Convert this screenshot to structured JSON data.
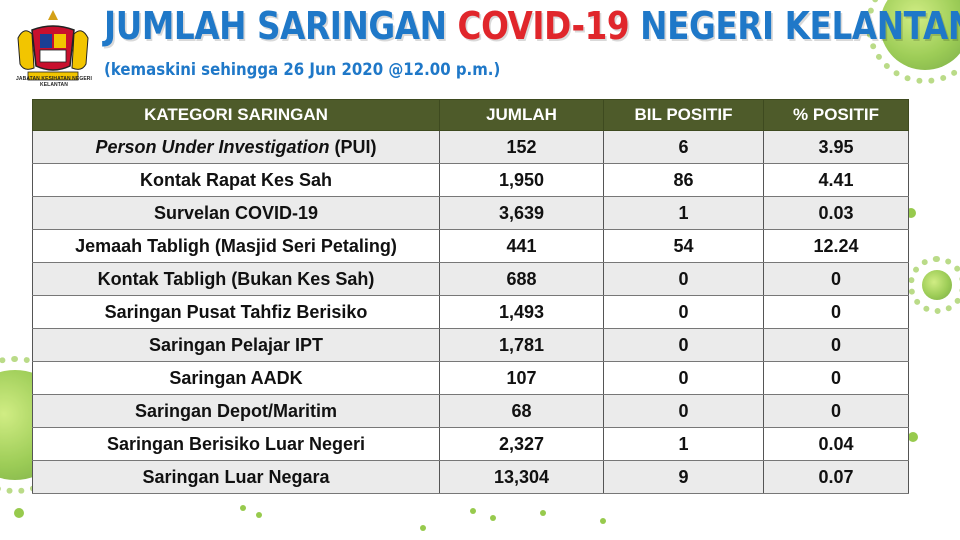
{
  "header": {
    "logo_caption": "JABATAN KESIHATAN NEGERI KELANTAN",
    "title_part1": "JUMLAH SARINGAN ",
    "title_part2": "COVID-19",
    "title_part3": " NEGERI KELANTAN",
    "subtitle": "(kemaskini sehingga 26 Jun 2020 @12.00 p.m.)"
  },
  "colors": {
    "title_blue": "#1f78c8",
    "title_red": "#e0262b",
    "header_bg": "#4e5b2a",
    "virus_green": "#8cc43a"
  },
  "table": {
    "headers": [
      "KATEGORI SARINGAN",
      "JUMLAH",
      "BIL POSITIF",
      "% POSITIF"
    ],
    "rows": [
      {
        "kategori_italic": "Person Under Investigation",
        "kategori": " (PUI)",
        "jumlah": "152",
        "positif": "6",
        "peratus": "3.95"
      },
      {
        "kategori_italic": "",
        "kategori": "Kontak Rapat Kes Sah",
        "jumlah": "1,950",
        "positif": "86",
        "peratus": "4.41"
      },
      {
        "kategori_italic": "",
        "kategori": "Survelan COVID-19",
        "jumlah": "3,639",
        "positif": "1",
        "peratus": "0.03"
      },
      {
        "kategori_italic": "",
        "kategori": "Jemaah Tabligh (Masjid Seri Petaling)",
        "jumlah": "441",
        "positif": "54",
        "peratus": "12.24"
      },
      {
        "kategori_italic": "",
        "kategori": "Kontak Tabligh (Bukan Kes Sah)",
        "jumlah": "688",
        "positif": "0",
        "peratus": "0"
      },
      {
        "kategori_italic": "",
        "kategori": "Saringan Pusat Tahfiz Berisiko",
        "jumlah": "1,493",
        "positif": "0",
        "peratus": "0"
      },
      {
        "kategori_italic": "",
        "kategori": "Saringan Pelajar IPT",
        "jumlah": "1,781",
        "positif": "0",
        "peratus": "0"
      },
      {
        "kategori_italic": "",
        "kategori": "Saringan AADK",
        "jumlah": "107",
        "positif": "0",
        "peratus": "0"
      },
      {
        "kategori_italic": "",
        "kategori": "Saringan Depot/Maritim",
        "jumlah": "68",
        "positif": "0",
        "peratus": "0"
      },
      {
        "kategori_italic": "",
        "kategori": "Saringan Berisiko Luar Negeri",
        "jumlah": "2,327",
        "positif": "1",
        "peratus": "0.04"
      },
      {
        "kategori_italic": "",
        "kategori": "Saringan Luar Negara",
        "jumlah": "13,304",
        "positif": "9",
        "peratus": "0.07"
      }
    ]
  }
}
